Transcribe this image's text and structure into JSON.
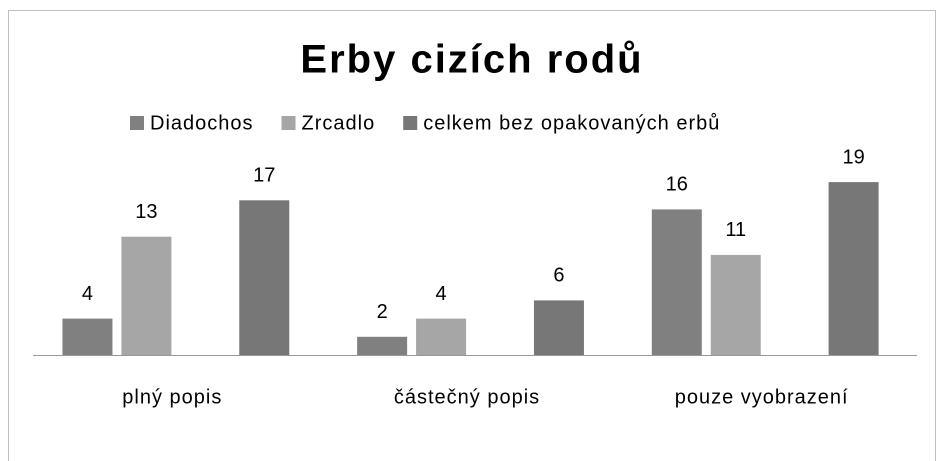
{
  "chart_data": {
    "type": "bar",
    "title": "Erby cizích rodů",
    "categories": [
      "plný popis",
      "částečný popis",
      "pouze vyobrazení"
    ],
    "series": [
      {
        "name": "Diadochos",
        "color": "#808080",
        "values": [
          4,
          2,
          16
        ]
      },
      {
        "name": "Zrcadlo",
        "color": "#a6a6a6",
        "values": [
          13,
          4,
          11
        ]
      },
      {
        "name": "celkem bez opakovaných erbů",
        "color": "#777777",
        "values": [
          17,
          6,
          19
        ]
      }
    ],
    "ylim": [
      0,
      20
    ],
    "grid": false,
    "legend": "top"
  }
}
